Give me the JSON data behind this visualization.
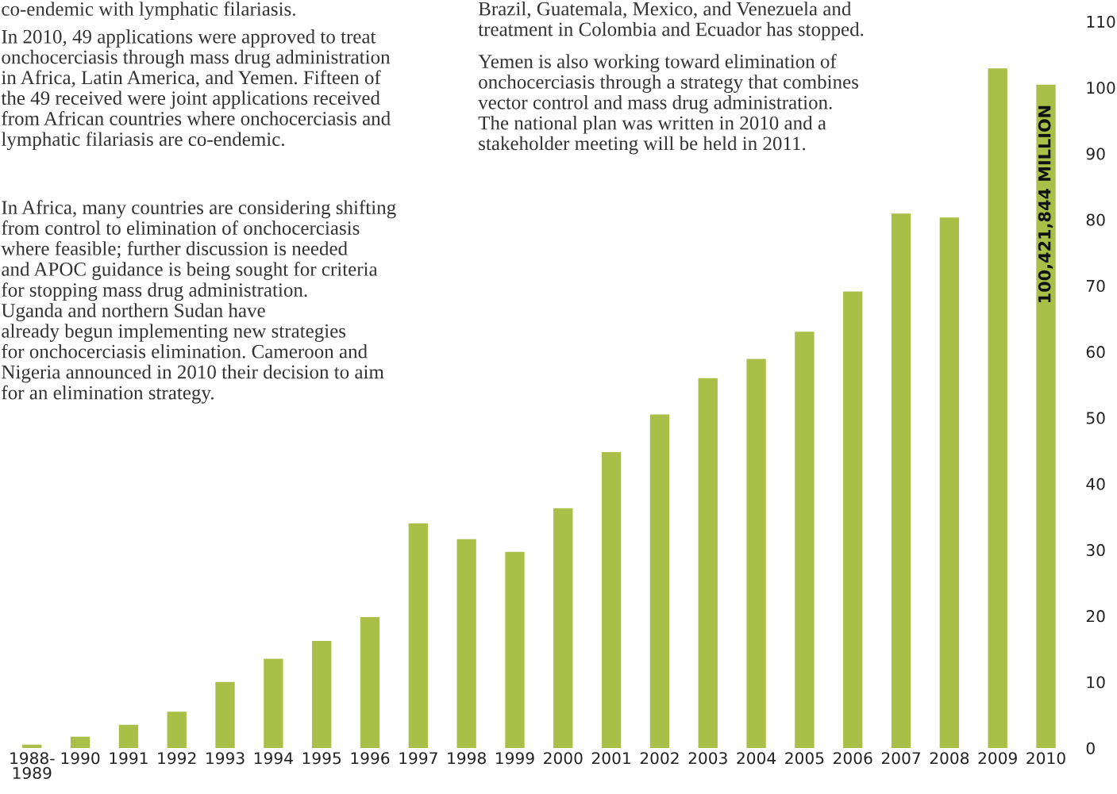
{
  "chart_data": {
    "type": "bar",
    "categories": [
      "1988-\n1989",
      "1990",
      "1991",
      "1992",
      "1993",
      "1994",
      "1995",
      "1996",
      "1997",
      "1998",
      "1999",
      "2000",
      "2001",
      "2002",
      "2003",
      "2004",
      "2005",
      "2006",
      "2007",
      "2008",
      "2009",
      "2010"
    ],
    "values": [
      0.5,
      1.7,
      3.5,
      5.5,
      10,
      13.5,
      16.2,
      19.8,
      34,
      31.6,
      29.7,
      36.3,
      44.8,
      50.5,
      56,
      58.9,
      63,
      69.1,
      80.9,
      80.3,
      102.9,
      100.421844
    ],
    "color": "#a9bf48",
    "ylim": [
      0,
      110
    ],
    "yticks": [
      0,
      10,
      20,
      30,
      40,
      50,
      60,
      70,
      80,
      90,
      100,
      110
    ],
    "grid": false,
    "legend": false,
    "annotations": [
      {
        "text": "100,421,844 MILLION",
        "x": "2010",
        "y": 100.421844
      },
      "co-endemic with lymphatic filariasis.",
      "In 2010, 49 applications were approved to treat\nonchocerciasis through mass drug administration\nin Africa, Latin America, and Yemen. Fifteen of\nthe 49 received were joint applications received\nfrom African countries where onchocerciasis and\nlymphatic filariasis are co-endemic.",
      "In Africa, many countries are considering shifting\nfrom control to elimination of onchocerciasis\nwhere feasible; further discussion is needed\nand APOC guidance is being sought for criteria\nfor stopping mass drug administration.\nUganda and northern Sudan have\nalready begun implementing new strategies\nfor onchocerciasis elimination. Cameroon and\nNigeria announced in 2010 their decision to aim\nfor an elimination strategy.",
      "Brazil, Guatemala, Mexico, and Venezuela and\ntreatment in Colombia and Ecuador has stopped.",
      "Yemen is also working toward elimination of\nonchocerciasis through a strategy that combines\nvector control and mass drug administration.\nThe national plan was written in 2010 and a\nstakeholder meeting will be held in 2011."
    ]
  }
}
